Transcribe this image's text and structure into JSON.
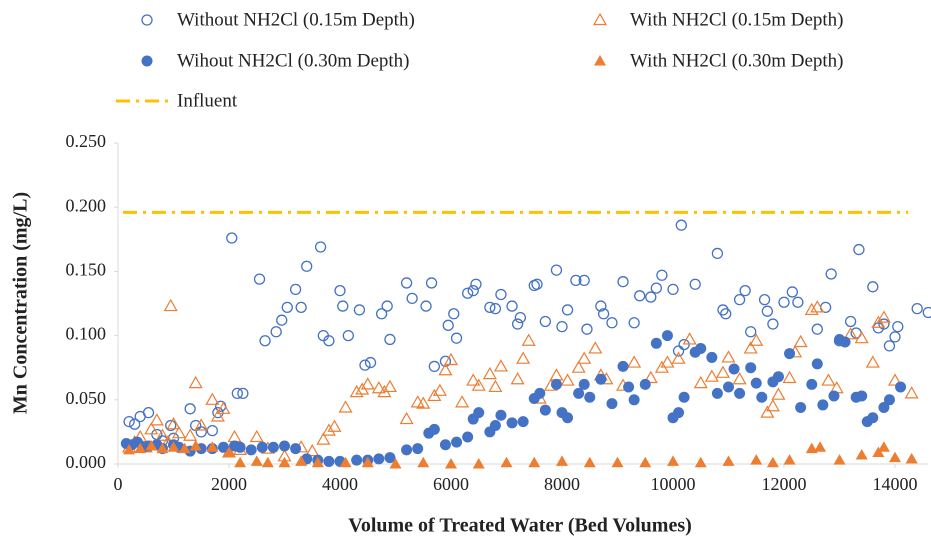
{
  "chart_data": {
    "type": "scatter",
    "x_label": "Volume of Treated Water (Bed Volumes)",
    "y_label": "Mn Concentration (mg/L)",
    "xlim": [
      0,
      14600
    ],
    "xticks": [
      0,
      2000,
      4000,
      6000,
      8000,
      10000,
      12000,
      14000
    ],
    "ylim": [
      0,
      0.25
    ],
    "yticks": [
      {
        "value": 0,
        "label": "0.000"
      },
      {
        "value": 0.05,
        "label": "0.050"
      },
      {
        "value": 0.1,
        "label": "0.100"
      },
      {
        "value": 0.15,
        "label": "0.150"
      },
      {
        "value": 0.2,
        "label": "0.200"
      },
      {
        "value": 0.25,
        "label": "0.250"
      }
    ],
    "influent": {
      "name": "Influent",
      "value": 0.196,
      "color": "#ffc000"
    },
    "series": [
      {
        "name": "Without NH2Cl (0.15m Depth)",
        "color": "#4472c4",
        "marker": "circle",
        "filled": false,
        "x": [
          200,
          300,
          400,
          550,
          700,
          800,
          950,
          1000,
          1300,
          1400,
          1500,
          1700,
          1800,
          1850,
          2050,
          2150,
          2250,
          2550,
          2650,
          2850,
          2950,
          3050,
          3200,
          3300,
          3400,
          3650,
          3700,
          3800,
          4000,
          4050,
          4150,
          4350,
          4450,
          4550,
          4750,
          4850,
          4900,
          5200,
          5300,
          5550,
          5650,
          5700,
          5900,
          5950,
          6050,
          6100,
          6300,
          6400,
          6450,
          6700,
          6800,
          6900,
          7100,
          7200,
          7250,
          7500,
          7550,
          7700,
          7900,
          8000,
          8100,
          8250,
          8400,
          8450,
          8700,
          8750,
          8900,
          9100,
          9300,
          9400,
          9600,
          9700,
          9800,
          10000,
          10100,
          10200,
          10400,
          10150,
          10800,
          10900,
          10950,
          11200,
          11300,
          11400,
          11650,
          11700,
          11800,
          12000,
          12150,
          12250,
          12600,
          12750,
          12850,
          13000,
          13200,
          13300,
          13350,
          13600,
          13700,
          13800,
          13900,
          14000,
          14050,
          14400,
          14600
        ],
        "values": [
          0.033,
          0.031,
          0.037,
          0.04,
          0.023,
          0.018,
          0.03,
          0.02,
          0.043,
          0.03,
          0.025,
          0.026,
          0.04,
          0.045,
          0.176,
          0.055,
          0.055,
          0.144,
          0.096,
          0.103,
          0.112,
          0.122,
          0.136,
          0.122,
          0.154,
          0.169,
          0.1,
          0.096,
          0.135,
          0.123,
          0.1,
          0.12,
          0.077,
          0.079,
          0.117,
          0.123,
          0.097,
          0.141,
          0.129,
          0.123,
          0.141,
          0.076,
          0.08,
          0.108,
          0.117,
          0.098,
          0.133,
          0.135,
          0.14,
          0.122,
          0.121,
          0.132,
          0.123,
          0.109,
          0.114,
          0.139,
          0.14,
          0.111,
          0.151,
          0.107,
          0.12,
          0.143,
          0.143,
          0.105,
          0.123,
          0.117,
          0.11,
          0.142,
          0.11,
          0.131,
          0.13,
          0.137,
          0.147,
          0.136,
          0.088,
          0.093,
          0.14,
          0.186,
          0.164,
          0.12,
          0.117,
          0.128,
          0.135,
          0.103,
          0.128,
          0.119,
          0.109,
          0.126,
          0.134,
          0.126,
          0.105,
          0.122,
          0.148,
          0.096,
          0.111,
          0.102,
          0.167,
          0.138,
          0.106,
          0.109,
          0.092,
          0.099,
          0.107,
          0.121,
          0.118
        ]
      },
      {
        "name": "With NH2Cl (0.15m Depth)",
        "color": "#ed7d31",
        "marker": "triangle",
        "filled": false,
        "x": [
          200,
          300,
          400,
          500,
          600,
          700,
          800,
          900,
          950,
          1000,
          1100,
          1300,
          1400,
          1500,
          1700,
          1800,
          1900,
          2000,
          2100,
          2200,
          2500,
          2700,
          3000,
          3300,
          3500,
          3700,
          3800,
          3900,
          4100,
          4300,
          4400,
          4500,
          4700,
          4800,
          4900,
          5200,
          5400,
          5500,
          5700,
          5800,
          5900,
          6000,
          6200,
          6400,
          6500,
          6700,
          6800,
          6900,
          7200,
          7300,
          7400,
          7600,
          7800,
          7900,
          8100,
          8300,
          8400,
          8600,
          8700,
          8800,
          9100,
          9300,
          9600,
          9800,
          9900,
          10100,
          10300,
          10500,
          10700,
          10900,
          11000,
          11200,
          11400,
          11500,
          11700,
          11800,
          11900,
          12100,
          12200,
          12300,
          12500,
          12600,
          12800,
          12950,
          13200,
          13400,
          13600,
          13700,
          13800,
          14000,
          14300
        ],
        "values": [
          0.013,
          0.017,
          0.021,
          0.013,
          0.027,
          0.034,
          0.022,
          0.017,
          0.123,
          0.031,
          0.024,
          0.022,
          0.063,
          0.03,
          0.05,
          0.037,
          0.043,
          0.009,
          0.021,
          0.011,
          0.021,
          0.012,
          0.006,
          0.013,
          0.01,
          0.019,
          0.026,
          0.029,
          0.044,
          0.056,
          0.058,
          0.062,
          0.059,
          0.056,
          0.06,
          0.035,
          0.048,
          0.047,
          0.053,
          0.057,
          0.073,
          0.081,
          0.048,
          0.065,
          0.061,
          0.07,
          0.06,
          0.076,
          0.066,
          0.082,
          0.096,
          0.051,
          0.061,
          0.069,
          0.065,
          0.075,
          0.082,
          0.09,
          0.069,
          0.066,
          0.061,
          0.079,
          0.067,
          0.075,
          0.079,
          0.082,
          0.097,
          0.063,
          0.068,
          0.071,
          0.083,
          0.066,
          0.09,
          0.096,
          0.04,
          0.045,
          0.054,
          0.067,
          0.087,
          0.095,
          0.12,
          0.122,
          0.065,
          0.059,
          0.101,
          0.098,
          0.079,
          0.11,
          0.114,
          0.065,
          0.055
        ]
      },
      {
        "name": "Wihout NH2Cl (0.30m Depth)",
        "color": "#4472c4",
        "marker": "circle",
        "filled": true,
        "x": [
          150,
          250,
          350,
          450,
          550,
          700,
          800,
          1000,
          1100,
          1300,
          1500,
          1700,
          1900,
          2100,
          2200,
          2400,
          2600,
          2800,
          3000,
          3200,
          3400,
          3600,
          3800,
          4000,
          4300,
          4500,
          4700,
          4900,
          5200,
          5400,
          5600,
          5700,
          5900,
          6100,
          6300,
          6400,
          6500,
          6700,
          6800,
          6900,
          7100,
          7300,
          7500,
          7600,
          7700,
          7900,
          8000,
          8100,
          8300,
          8400,
          8500,
          8700,
          8900,
          9100,
          9200,
          9300,
          9500,
          9700,
          9900,
          10000,
          10100,
          10200,
          10400,
          10500,
          10700,
          10800,
          11000,
          11100,
          11200,
          11400,
          11500,
          11600,
          11800,
          11900,
          12100,
          12300,
          12500,
          12600,
          12700,
          12900,
          13000,
          13100,
          13300,
          13400,
          13500,
          13600,
          13800,
          13900,
          14100
        ],
        "values": [
          0.016,
          0.015,
          0.017,
          0.013,
          0.014,
          0.015,
          0.012,
          0.015,
          0.013,
          0.01,
          0.012,
          0.012,
          0.013,
          0.014,
          0.013,
          0.011,
          0.013,
          0.013,
          0.014,
          0.012,
          0.004,
          0.003,
          0.002,
          0.002,
          0.003,
          0.003,
          0.004,
          0.005,
          0.011,
          0.012,
          0.024,
          0.027,
          0.015,
          0.017,
          0.021,
          0.035,
          0.04,
          0.025,
          0.03,
          0.038,
          0.032,
          0.033,
          0.051,
          0.055,
          0.042,
          0.062,
          0.04,
          0.036,
          0.055,
          0.062,
          0.052,
          0.066,
          0.047,
          0.076,
          0.06,
          0.05,
          0.062,
          0.094,
          0.1,
          0.036,
          0.04,
          0.052,
          0.087,
          0.09,
          0.083,
          0.055,
          0.06,
          0.074,
          0.055,
          0.075,
          0.063,
          0.052,
          0.064,
          0.068,
          0.086,
          0.044,
          0.062,
          0.078,
          0.046,
          0.053,
          0.097,
          0.095,
          0.052,
          0.053,
          0.033,
          0.036,
          0.044,
          0.05,
          0.06
        ]
      },
      {
        "name": "With NH2Cl (0.30m Depth)",
        "color": "#ed7d31",
        "marker": "triangle",
        "filled": true,
        "x": [
          200,
          400,
          600,
          800,
          1000,
          1200,
          1400,
          1700,
          2000,
          2200,
          2500,
          2700,
          3000,
          3300,
          3600,
          4100,
          4500,
          5000,
          5500,
          6000,
          6500,
          7000,
          7500,
          8000,
          8500,
          9000,
          9500,
          10000,
          10500,
          11000,
          11500,
          11800,
          12100,
          12500,
          12650,
          13000,
          13400,
          13700,
          13800,
          14000,
          14300
        ],
        "values": [
          0.011,
          0.012,
          0.014,
          0.012,
          0.013,
          0.012,
          0.014,
          0.013,
          0.009,
          0.001,
          0.002,
          0.001,
          0.001,
          0.002,
          0.001,
          0.001,
          0.001,
          0.0,
          0.001,
          0.0,
          0.0,
          0.001,
          0.001,
          0.002,
          0.001,
          0.001,
          0.001,
          0.002,
          0.001,
          0.002,
          0.003,
          0.001,
          0.003,
          0.012,
          0.013,
          0.003,
          0.007,
          0.009,
          0.013,
          0.005,
          0.004
        ]
      }
    ]
  }
}
